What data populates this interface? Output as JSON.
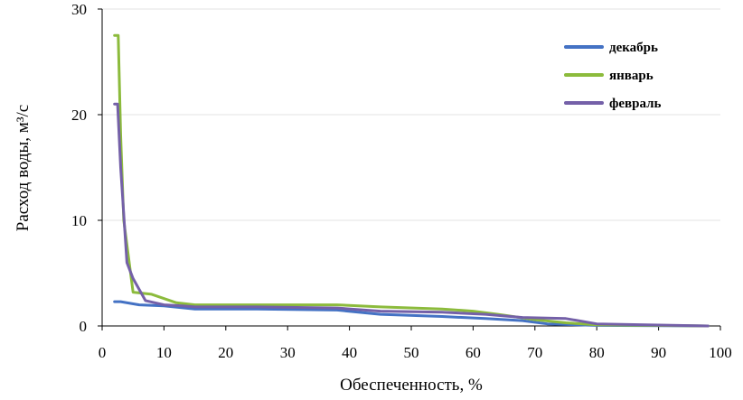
{
  "chart_data": {
    "type": "line",
    "xlabel": "Обеспеченность, %",
    "ylabel": "Расход воды, м³/с",
    "xlim": [
      0,
      100
    ],
    "ylim": [
      0,
      30
    ],
    "xticks": [
      "0",
      "10",
      "20",
      "30",
      "40",
      "50",
      "60",
      "70",
      "80",
      "90",
      "100"
    ],
    "yticks": [
      "0",
      "10",
      "20",
      "30"
    ],
    "grid": "horizontal",
    "legend_position": "top-right",
    "series": [
      {
        "name": "декабрь",
        "color": "#4472c4",
        "x": [
          2,
          3,
          6,
          10,
          15,
          25,
          38,
          45,
          55,
          62,
          68,
          72,
          80,
          98
        ],
        "y": [
          2.3,
          2.3,
          2.0,
          1.9,
          1.6,
          1.6,
          1.5,
          1.1,
          0.9,
          0.7,
          0.5,
          0.2,
          0.05,
          0.0
        ]
      },
      {
        "name": "январь",
        "color": "#8cbb3c",
        "x": [
          2,
          2.6,
          3,
          3.5,
          5,
          8,
          12,
          15,
          25,
          38,
          45,
          55,
          60,
          64,
          70,
          75,
          80,
          98
        ],
        "y": [
          27.5,
          27.5,
          18.0,
          10.0,
          3.2,
          3.0,
          2.2,
          2.0,
          2.0,
          2.0,
          1.8,
          1.6,
          1.4,
          1.1,
          0.6,
          0.3,
          0.1,
          0.0
        ]
      },
      {
        "name": "февраль",
        "color": "#7460a8",
        "x": [
          2,
          2.5,
          3,
          4,
          5,
          7,
          10,
          13,
          15,
          25,
          38,
          45,
          55,
          62,
          68,
          75,
          77,
          80,
          98
        ],
        "y": [
          21.0,
          21.0,
          15.0,
          6.0,
          4.5,
          2.4,
          2.0,
          1.9,
          1.8,
          1.8,
          1.7,
          1.4,
          1.3,
          1.1,
          0.8,
          0.7,
          0.5,
          0.2,
          0.0
        ]
      }
    ]
  }
}
